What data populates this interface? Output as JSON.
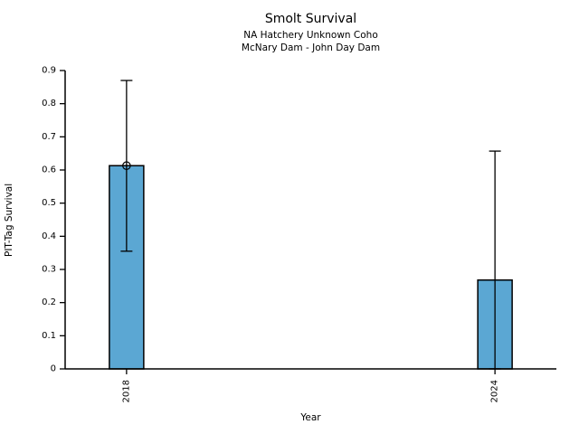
{
  "chart_data": {
    "type": "bar",
    "title": "Smolt Survival",
    "subtitle1": "NA Hatchery Unknown Coho",
    "subtitle2": "McNary Dam - John Day Dam",
    "xlabel": "Year",
    "ylabel": "PIT-Tag Survival",
    "categories": [
      "2018",
      "2024"
    ],
    "values": [
      0.613,
      0.268
    ],
    "error_low": [
      0.355,
      0.0
    ],
    "error_high": [
      0.87,
      0.657
    ],
    "marker_on_bar_top": [
      true,
      false
    ],
    "ylim": [
      0,
      0.9
    ],
    "yticks": [
      "0",
      "0.1",
      "0.2",
      "0.3",
      "0.4",
      "0.5",
      "0.6",
      "0.7",
      "0.8",
      "0.9"
    ],
    "grid": false,
    "legend": null,
    "bar_color": "#5BA7D3",
    "bar_edge_color": "#000000",
    "axis_color": "#000000",
    "text_color": "#000000"
  }
}
